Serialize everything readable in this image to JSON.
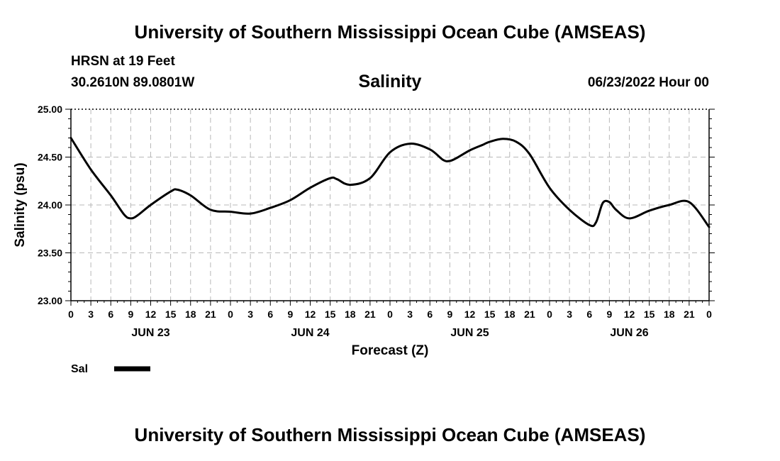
{
  "header": {
    "top_title": "University of Southern Mississippi Ocean Cube (AMSEAS)",
    "bottom_title": "University of Southern Mississippi Ocean Cube (AMSEAS)",
    "station": "HRSN at 19 Feet",
    "coordinates": "30.2610N  89.0801W",
    "datetime": "06/23/2022 Hour 00"
  },
  "chart_data": {
    "type": "line",
    "title": "Salinity",
    "xlabel": "Forecast (Z)",
    "ylabel": "Salinity (psu)",
    "ylim": [
      23.0,
      25.0
    ],
    "xlim": [
      0,
      96
    ],
    "x_unit": "hours from 06/23/2022 00Z",
    "yticks": [
      "23.00",
      "23.50",
      "24.00",
      "24.50",
      "25.00"
    ],
    "ytick_values": [
      23.0,
      23.5,
      24.0,
      24.5,
      25.0
    ],
    "xtick_labels": [
      "0",
      "3",
      "6",
      "9",
      "12",
      "15",
      "18",
      "21",
      "0",
      "3",
      "6",
      "9",
      "12",
      "15",
      "18",
      "21",
      "0",
      "3",
      "6",
      "9",
      "12",
      "15",
      "18",
      "21",
      "0",
      "3",
      "6",
      "9",
      "12",
      "15",
      "18",
      "21",
      "0"
    ],
    "day_labels": [
      {
        "label": "JUN 23",
        "hour": 12
      },
      {
        "label": "JUN 24",
        "hour": 36
      },
      {
        "label": "JUN 25",
        "hour": 60
      },
      {
        "label": "JUN 26",
        "hour": 84
      }
    ],
    "grid": true,
    "series": [
      {
        "name": "Sal",
        "x": [
          0,
          3,
          6,
          8,
          9,
          10,
          12,
          15,
          16,
          18,
          21,
          24,
          27,
          30,
          33,
          36,
          39,
          40,
          42,
          45,
          48,
          51,
          54,
          56,
          57,
          58,
          60,
          62,
          63,
          65,
          67,
          69,
          72,
          75,
          78,
          79,
          80,
          81,
          82,
          84,
          87,
          90,
          93,
          96
        ],
        "y": [
          24.7,
          24.37,
          24.1,
          23.9,
          23.86,
          23.89,
          24.0,
          24.14,
          24.16,
          24.1,
          23.95,
          23.93,
          23.91,
          23.97,
          24.05,
          24.18,
          24.28,
          24.27,
          24.21,
          24.28,
          24.55,
          24.64,
          24.58,
          24.47,
          24.46,
          24.49,
          24.57,
          24.63,
          24.66,
          24.69,
          24.66,
          24.53,
          24.18,
          23.95,
          23.79,
          23.82,
          24.02,
          24.03,
          23.95,
          23.86,
          23.94,
          24.0,
          24.03,
          23.77
        ]
      }
    ],
    "legend": {
      "position": "bottom-left",
      "entries": [
        "Sal"
      ]
    }
  }
}
